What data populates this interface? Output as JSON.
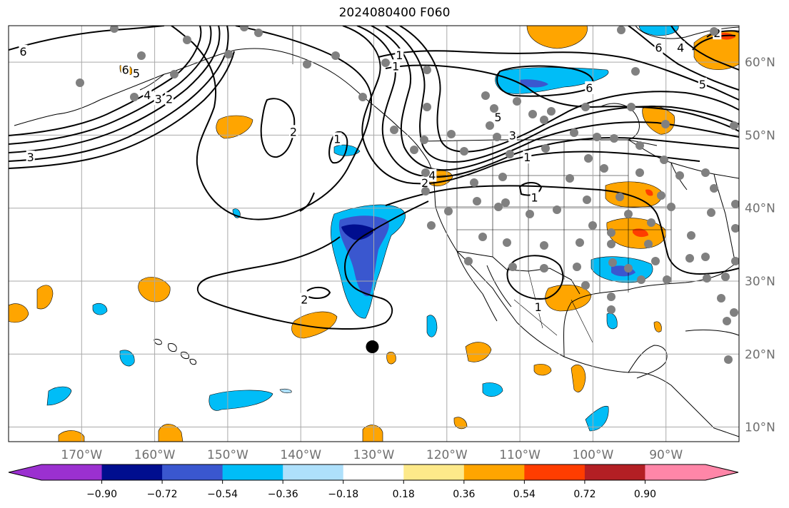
{
  "title": "2024080400 F060",
  "map": {
    "lon_range": [
      -180,
      -80
    ],
    "lat_range": [
      8,
      65
    ],
    "grid": true,
    "longitude_ticks": [
      {
        "lon": -170,
        "label": "170°W"
      },
      {
        "lon": -160,
        "label": "160°W"
      },
      {
        "lon": -150,
        "label": "150°W"
      },
      {
        "lon": -140,
        "label": "140°W"
      },
      {
        "lon": -130,
        "label": "130°W"
      },
      {
        "lon": -120,
        "label": "120°W"
      },
      {
        "lon": -110,
        "label": "110°W"
      },
      {
        "lon": -100,
        "label": "100°W"
      },
      {
        "lon": -90,
        "label": "90°W"
      }
    ],
    "latitude_ticks": [
      {
        "lat": 10,
        "label": "10°N"
      },
      {
        "lat": 20,
        "label": "20°N"
      },
      {
        "lat": 30,
        "label": "30°N"
      },
      {
        "lat": 40,
        "label": "40°N"
      },
      {
        "lat": 50,
        "label": "50°N"
      },
      {
        "lat": 60,
        "label": "60°N"
      }
    ],
    "contour_labels": [
      {
        "text": "6",
        "lon": -178,
        "lat": 61.5
      },
      {
        "text": "6",
        "lon": -164,
        "lat": 59
      },
      {
        "text": "5",
        "lon": -162.5,
        "lat": 58.5
      },
      {
        "text": "4",
        "lon": -161,
        "lat": 55.5
      },
      {
        "text": "3",
        "lon": -159.5,
        "lat": 55
      },
      {
        "text": "2",
        "lon": -158,
        "lat": 55
      },
      {
        "text": "3",
        "lon": -177,
        "lat": 47
      },
      {
        "text": "2",
        "lon": -141,
        "lat": 50.5
      },
      {
        "text": "1",
        "lon": -135,
        "lat": 49.5
      },
      {
        "text": "1",
        "lon": -126.5,
        "lat": 61
      },
      {
        "text": "1",
        "lon": -127,
        "lat": 59.5
      },
      {
        "text": "6",
        "lon": -100.5,
        "lat": 56.5
      },
      {
        "text": "5",
        "lon": -113,
        "lat": 52.5
      },
      {
        "text": "3",
        "lon": -111,
        "lat": 50
      },
      {
        "text": "1",
        "lon": -109,
        "lat": 47
      },
      {
        "text": "4",
        "lon": -122,
        "lat": 44.5
      },
      {
        "text": "2",
        "lon": -123,
        "lat": 43.5
      },
      {
        "text": "1",
        "lon": -108,
        "lat": 41.5
      },
      {
        "text": "2",
        "lon": -139.5,
        "lat": 27.5
      },
      {
        "text": "1",
        "lon": -107.5,
        "lat": 26.5
      },
      {
        "text": "6",
        "lon": -91,
        "lat": 62
      },
      {
        "text": "4",
        "lon": -88,
        "lat": 62
      },
      {
        "text": "5",
        "lon": -85,
        "lat": 57
      },
      {
        "text": "2",
        "lon": -83,
        "lat": 64
      }
    ],
    "marker": {
      "lon": -130.2,
      "lat": 21
    }
  },
  "colorbar": {
    "segments": [
      {
        "label": "-0.90",
        "color": "#9b30d0"
      },
      {
        "label": "-0.72",
        "color": "#000e8f"
      },
      {
        "label": "-0.54",
        "color": "#3a57cf"
      },
      {
        "label": "-0.36",
        "color": "#00bdf7"
      },
      {
        "label": "-0.18",
        "color": "#aee0fb"
      },
      {
        "label": "0.18",
        "color": "#ffffff"
      },
      {
        "label": "0.36",
        "color": "#fde98a"
      },
      {
        "label": "0.54",
        "color": "#ffa500"
      },
      {
        "label": "0.72",
        "color": "#ff3d00"
      },
      {
        "label": "0.90",
        "color": "#b31f24"
      },
      {
        "label": "",
        "color": "#ff86a8"
      }
    ],
    "tick_labels": [
      "−0.90",
      "−0.72",
      "−0.54",
      "−0.36",
      "−0.18",
      "0.18",
      "0.36",
      "0.54",
      "0.72",
      "0.90"
    ],
    "under_color": "#9b30d0",
    "over_color": "#ff86a8"
  },
  "colors": {
    "orange": "#ffa500",
    "light_blue": "#00bdf7",
    "mid_blue": "#3a57cf",
    "dark_blue": "#000e8f",
    "red": "#ff3d00",
    "station_gray": "#808080",
    "grid_gray": "#a9a9a9",
    "axis_label_gray": "#6f6f6f"
  }
}
